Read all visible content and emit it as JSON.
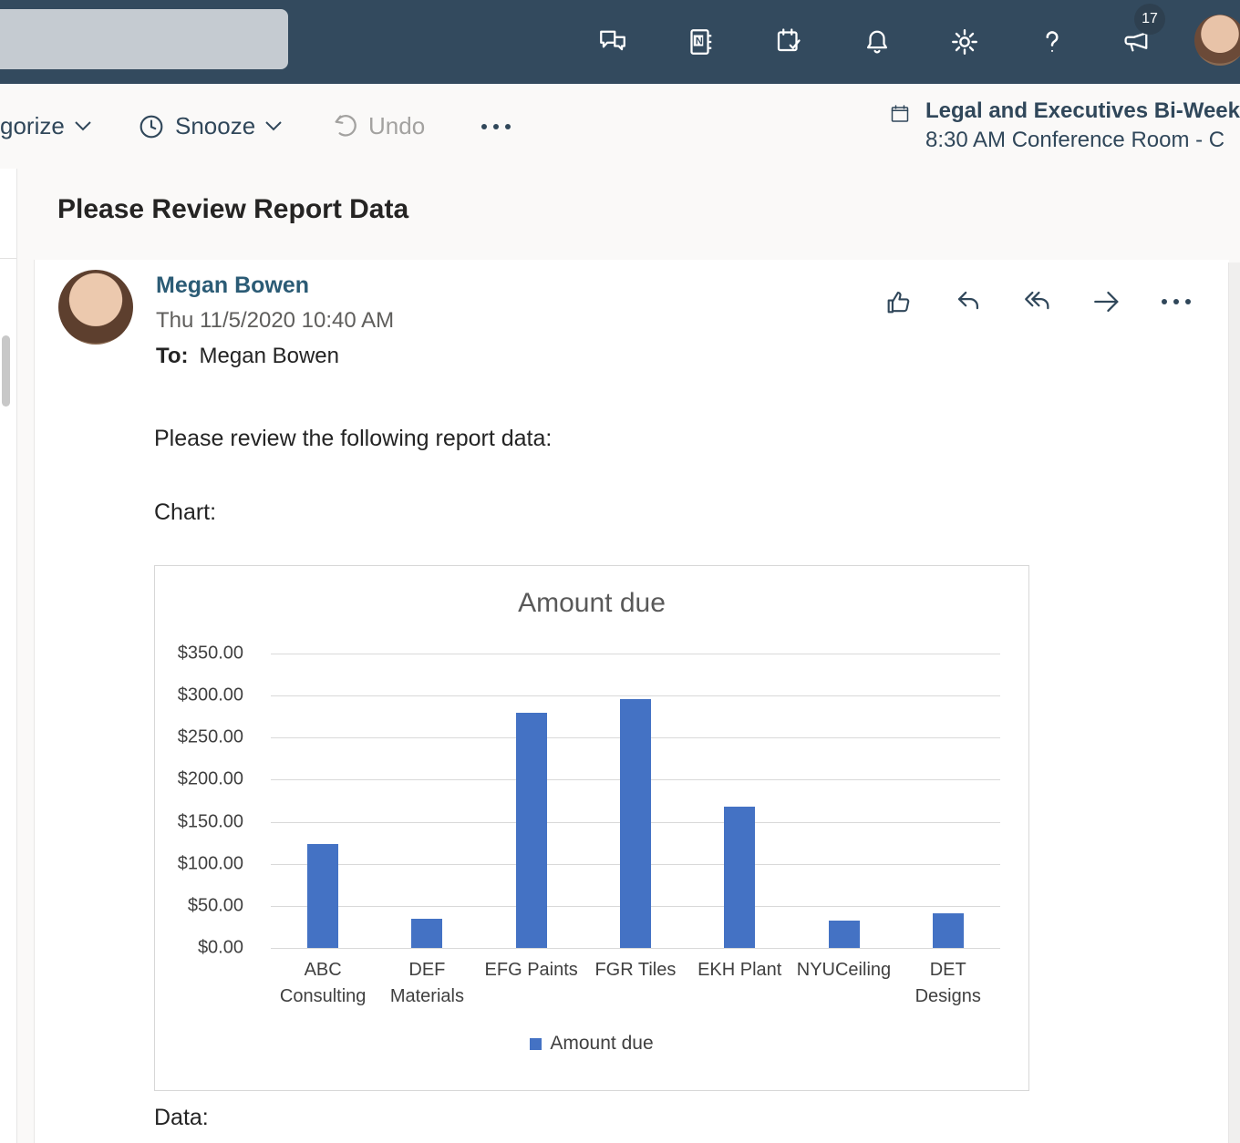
{
  "suite_bar": {
    "whats_new_badge": "17",
    "icons": [
      "feedback-chat-icon",
      "onenote-feed-icon",
      "my-day-calendar-icon",
      "notifications-bell-icon",
      "settings-gear-icon",
      "help-icon",
      "whats-new-megaphone-icon",
      "account-avatar"
    ],
    "help_glyph": "?",
    "colors": {
      "background": "#334a5e",
      "icon": "#ffffff",
      "badge_background": "#2e4050"
    }
  },
  "toolbar": {
    "categorize_label": "gorize",
    "snooze_label": "Snooze",
    "undo_label": "Undo"
  },
  "meeting_peek": {
    "title": "Legal and Executives Bi-Week",
    "details": "8:30 AM Conference Room - C"
  },
  "message": {
    "subject": "Please Review Report Data",
    "sender_name": "Megan Bowen",
    "timestamp": "Thu 11/5/2020 10:40 AM",
    "to_label": "To:",
    "to_value": "Megan Bowen",
    "body_intro": "Please review the following report data:",
    "body_chart_label": "Chart:",
    "body_data_label": "Data:"
  },
  "chart_data": {
    "type": "bar",
    "title": "Amount due",
    "categories": [
      "ABC Consulting",
      "DEF Materials",
      "EFG Paints",
      "FGR Tiles",
      "EKH Plant",
      "NYUCeiling",
      "DET Designs"
    ],
    "values": [
      124,
      35,
      280,
      296,
      168,
      33,
      41
    ],
    "series_name": "Amount due",
    "ytick_labels": [
      "$0.00",
      "$50.00",
      "$100.00",
      "$150.00",
      "$200.00",
      "$250.00",
      "$300.00",
      "$350.00"
    ],
    "ylim": [
      0,
      350
    ],
    "grid": true,
    "legend": {
      "position": "bottom",
      "entries": [
        "Amount due"
      ]
    },
    "bar_color": "#4472C4",
    "xlabel": "",
    "ylabel": ""
  }
}
